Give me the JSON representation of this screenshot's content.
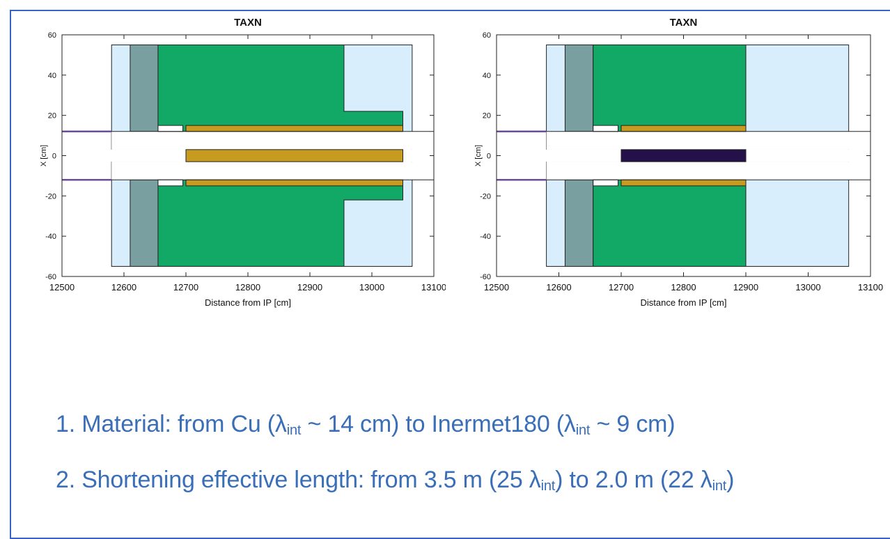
{
  "colors": {
    "frame": "#3a62c9",
    "light_blue": "#d8eefc",
    "slate": "#7a9fa0",
    "green": "#12a865",
    "gold": "#c79b1f",
    "dark_purple": "#24114a",
    "beam_line": "#6b4c9a",
    "bullet_text": "#3a6fb8"
  },
  "plots": [
    {
      "title": "TAXN",
      "xlabel": "Distance from IP [cm]",
      "ylabel": "X [cm]",
      "xlim": [
        12500,
        13100
      ],
      "ylim": [
        -60,
        60
      ],
      "x_ticks": [
        "12500",
        "12600",
        "12700",
        "12800",
        "12900",
        "13000",
        "13100"
      ],
      "y_ticks": [
        "60",
        "40",
        "20",
        "0",
        "-20",
        "-40",
        "-60"
      ],
      "absorber_end": 13050,
      "absorber_material": "Cu",
      "absorber_color": "gold"
    },
    {
      "title": "TAXN",
      "xlabel": "Distance from IP [cm]",
      "ylabel": "X [cm]",
      "xlim": [
        12500,
        13100
      ],
      "ylim": [
        -60,
        60
      ],
      "x_ticks": [
        "12500",
        "12600",
        "12700",
        "12800",
        "12900",
        "13000",
        "13100"
      ],
      "y_ticks": [
        "60",
        "40",
        "20",
        "0",
        "-20",
        "-40",
        "-60"
      ],
      "absorber_end": 12900,
      "absorber_material": "Inermet180",
      "absorber_color": "dark_purple"
    }
  ],
  "bullets": {
    "line1": {
      "a": "1. Material: from Cu (λ",
      "a_sub": "int",
      "b": " ~ 14 cm) to Inermet180 (λ",
      "b_sub": "int",
      "c": " ~ 9 cm)"
    },
    "line2": {
      "a": "2. Shortening effective length: from 3.5 m (25 λ",
      "a_sub": "int",
      "b": ") to 2.0 m (22 λ",
      "b_sub": "int",
      "c": ")"
    }
  }
}
